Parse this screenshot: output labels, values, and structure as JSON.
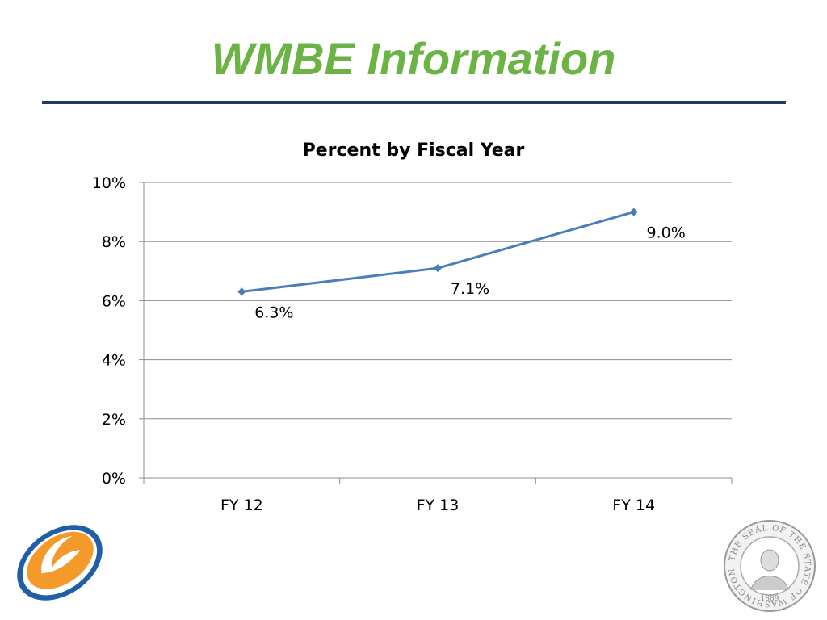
{
  "slide": {
    "title": "WMBE Information",
    "title_color": "#6AB344",
    "rule_color": "#1F3864"
  },
  "chart_data": {
    "type": "line",
    "title": "Percent by Fiscal Year",
    "categories": [
      "FY 12",
      "FY 13",
      "FY 14"
    ],
    "series": [
      {
        "values": [
          6.3,
          7.1,
          9.0
        ],
        "labels": [
          "6.3%",
          "7.1%",
          "9.0%"
        ],
        "color": "#4A7EBB"
      }
    ],
    "ylim": [
      0,
      10
    ],
    "yticks": [
      0,
      2,
      4,
      6,
      8,
      10
    ],
    "ytick_labels": [
      "0%",
      "2%",
      "4%",
      "6%",
      "8%",
      "10%"
    ],
    "xlabel": "",
    "ylabel": "",
    "grid": true,
    "legend": "none"
  },
  "images": {
    "logo_icon": "orange-blue-swoosh-logo",
    "seal_icon": "seal-of-the-state-of-washington",
    "seal_text": "THE SEAL OF THE STATE OF WASHINGTON",
    "seal_year": "1889"
  }
}
